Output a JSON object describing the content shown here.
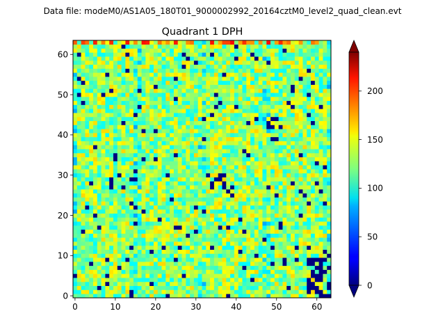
{
  "suptitle": "Data file: modeM0/AS1A05_180T01_9000002992_20164cztM0_level2_quad_clean.evt",
  "chart_data": {
    "type": "heatmap",
    "title": "Quadrant 1 DPH",
    "xlabel": "",
    "ylabel": "",
    "grid_size": [
      64,
      64
    ],
    "xlim": [
      0,
      63
    ],
    "ylim": [
      0,
      63
    ],
    "x_ticks": [
      0,
      10,
      20,
      30,
      40,
      50,
      60
    ],
    "y_ticks": [
      0,
      10,
      20,
      30,
      40,
      50,
      60
    ],
    "colormap": "jet",
    "colorbar": {
      "min": 0,
      "max": 240,
      "ticks": [
        0,
        50,
        100,
        150,
        200
      ],
      "extend": "both"
    },
    "typical_value_range": [
      90,
      160
    ],
    "low_count_pixel_value": 0,
    "dense_blocks": [
      {
        "x": [
          58,
          63
        ],
        "y": [
          0,
          12
        ],
        "note": "module with clustered dead pixels"
      },
      {
        "x": [
          48,
          52
        ],
        "y": [
          42,
          44
        ],
        "note": "dead pixel cluster"
      },
      {
        "x": [
          33,
          37
        ],
        "y": [
          27,
          30
        ],
        "note": "dead pixel cluster"
      }
    ]
  }
}
